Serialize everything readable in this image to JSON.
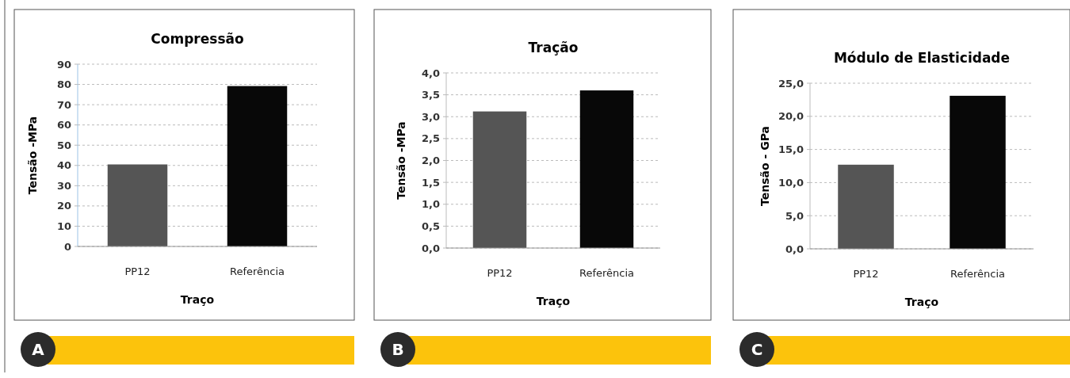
{
  "chart_data": [
    {
      "type": "bar",
      "title": "Compressão",
      "xlabel": "Traço",
      "ylabel": "Tensão -MPa",
      "categories": [
        "PP12",
        "Referência"
      ],
      "colors": [
        "#555555",
        "#080808"
      ],
      "values": [
        40.5,
        79.2
      ],
      "ylim": [
        0,
        90
      ],
      "yticks": [
        0,
        10,
        20,
        30,
        40,
        50,
        60,
        70,
        80,
        90
      ],
      "grid": "y",
      "annotations": [
        "A"
      ]
    },
    {
      "type": "bar",
      "title": "Tração",
      "xlabel": "Traço",
      "ylabel": "Tensão -MPa",
      "categories": [
        "PP12",
        "Referência"
      ],
      "colors": [
        "#555555",
        "#080808"
      ],
      "values": [
        3.12,
        3.6
      ],
      "ylim": [
        0,
        4
      ],
      "yticks": [
        {
          "value": 0,
          "label": "0,0"
        },
        {
          "value": 0.5,
          "label": "0,5"
        },
        {
          "value": 1,
          "label": "1,0"
        },
        {
          "value": 1.5,
          "label": "1,5"
        },
        {
          "value": 2,
          "label": "2,0"
        },
        {
          "value": 2.5,
          "label": "2,5"
        },
        {
          "value": 3,
          "label": "3,0"
        },
        {
          "value": 3.5,
          "label": "3,5"
        },
        {
          "value": 4,
          "label": "4,0"
        }
      ],
      "grid": "y",
      "annotations": [
        "B"
      ]
    },
    {
      "type": "bar",
      "title": "Módulo de Elasticidade",
      "xlabel": "Traço",
      "ylabel": "Tensão - GPa",
      "categories": [
        "PP12",
        "Referência"
      ],
      "colors": [
        "#555555",
        "#080808"
      ],
      "values": [
        12.7,
        23.1
      ],
      "ylim": [
        0,
        25
      ],
      "yticks": [
        {
          "value": 0,
          "label": "0,0"
        },
        {
          "value": 5,
          "label": "5,0"
        },
        {
          "value": 10,
          "label": "10,0"
        },
        {
          "value": 15,
          "label": "15,0"
        },
        {
          "value": 20,
          "label": "20,0"
        },
        {
          "value": 25,
          "label": "25,0"
        }
      ],
      "grid": "y",
      "annotations": [
        "C"
      ]
    }
  ]
}
